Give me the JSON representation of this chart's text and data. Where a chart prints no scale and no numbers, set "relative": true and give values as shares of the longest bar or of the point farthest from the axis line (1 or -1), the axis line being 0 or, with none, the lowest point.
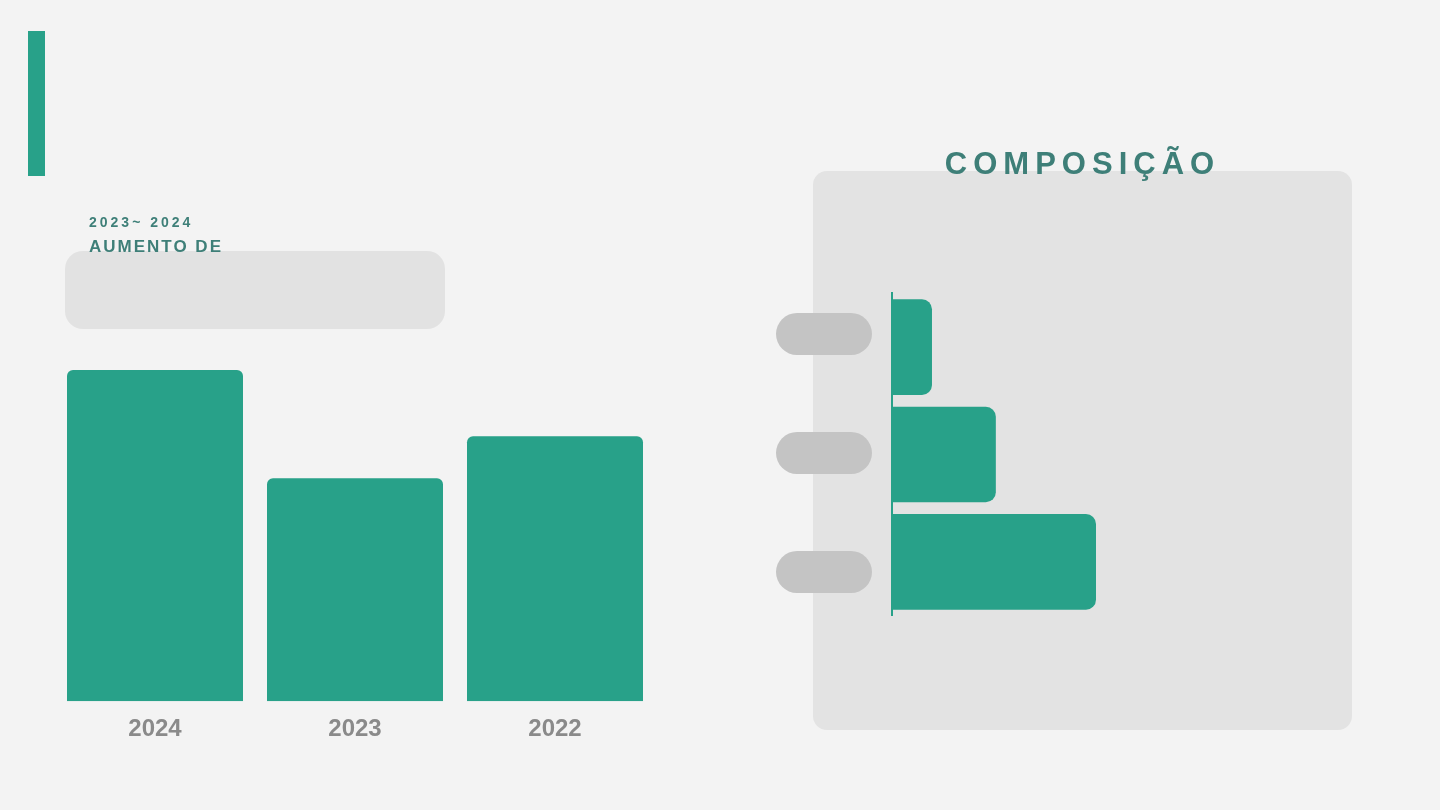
{
  "chart_data": [
    {
      "type": "bar",
      "title": "2023~ 2024",
      "subtitle": "AUMENTO DE",
      "categories": [
        "2024",
        "2023",
        "2022"
      ],
      "values": [
        1,
        0.673,
        0.8
      ],
      "color": "#28a189",
      "relative": true,
      "legend": false
    },
    {
      "type": "bar",
      "title": "COMPOSIÇÃO",
      "orientation": "horizontal",
      "categories": [
        null,
        null,
        null
      ],
      "values": [
        0.196,
        0.509,
        1
      ],
      "color": "#28a189",
      "relative": true,
      "legend": false
    }
  ]
}
